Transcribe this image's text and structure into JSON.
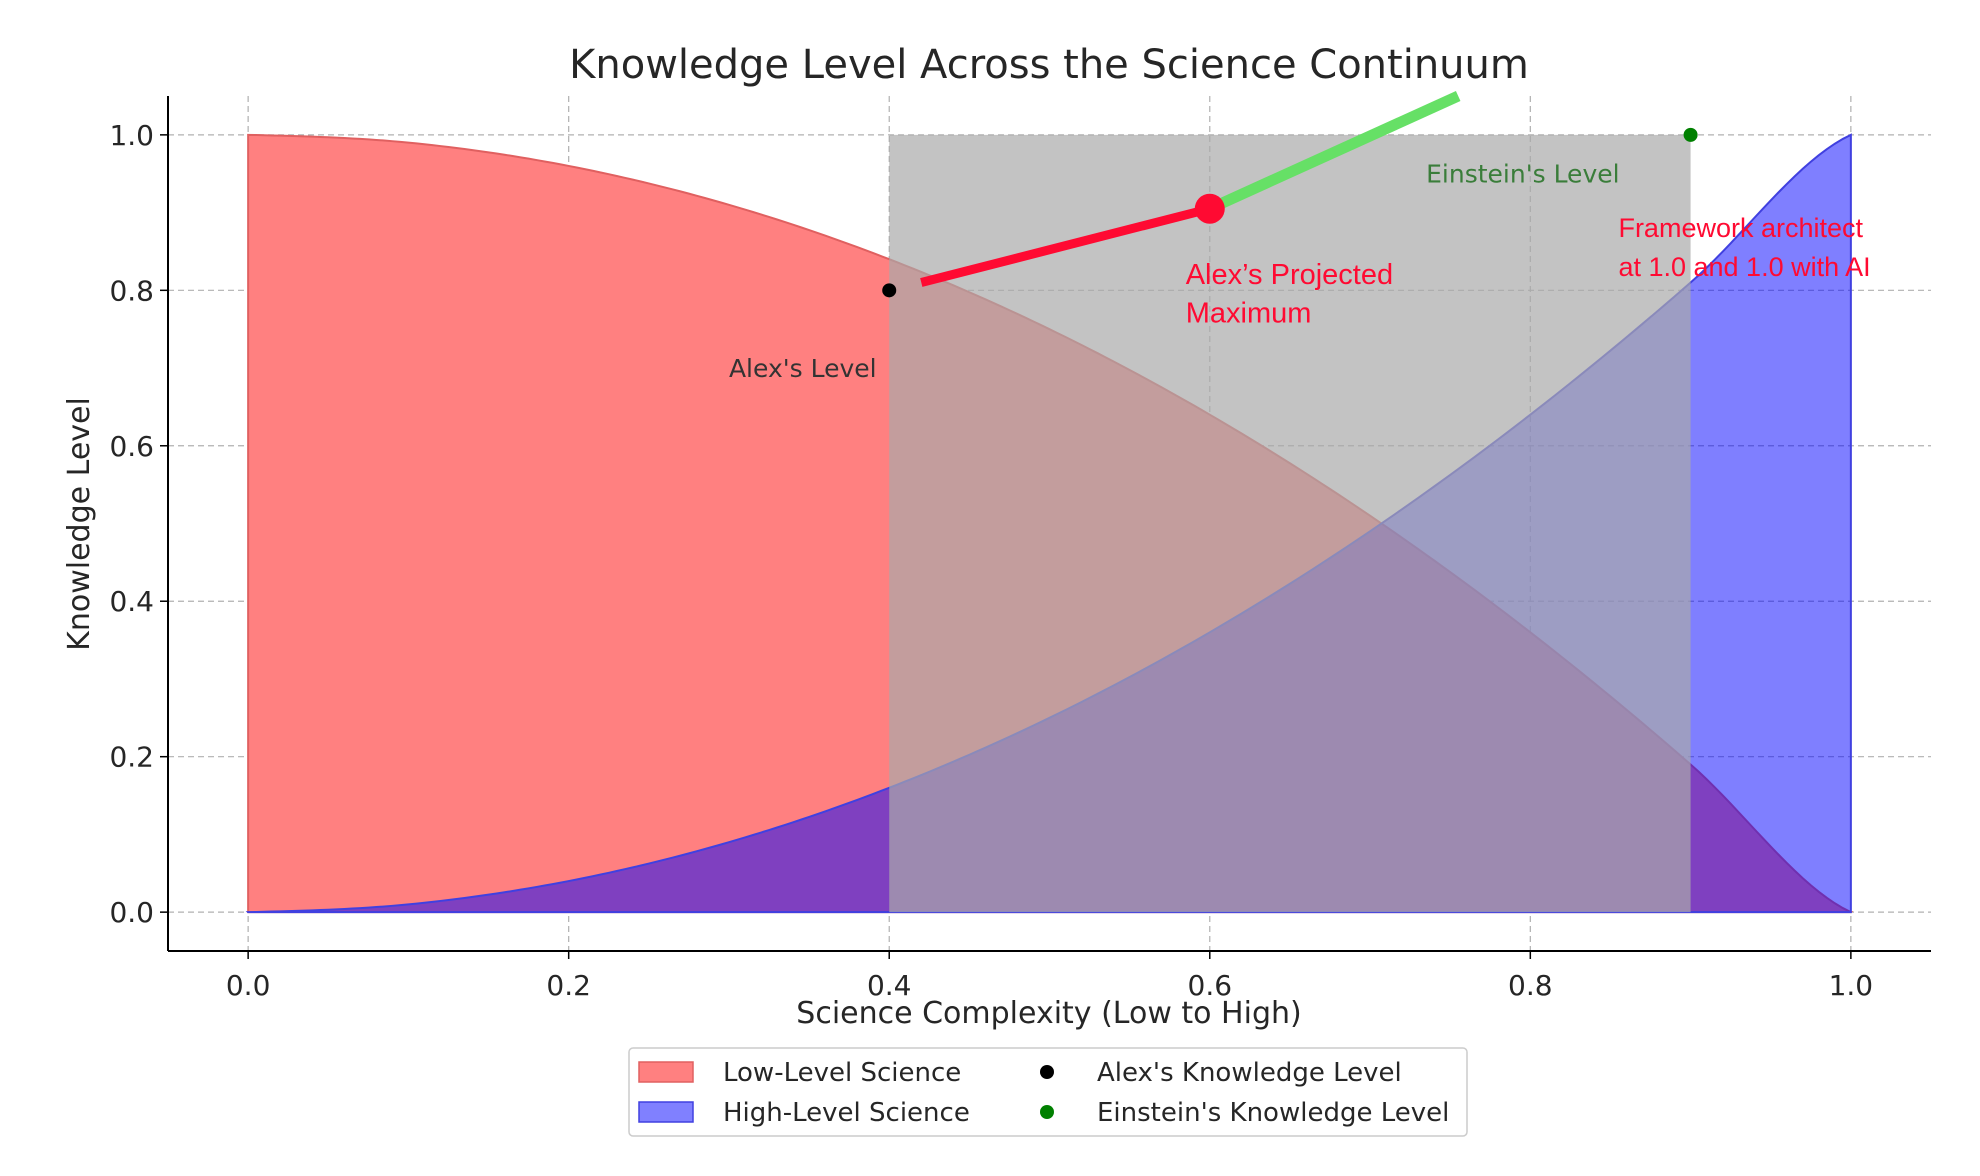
{
  "chart_data": {
    "type": "area",
    "title": "Knowledge Level Across the Science Continuum",
    "xlabel": "Science Complexity (Low to High)",
    "ylabel": "Knowledge Level",
    "xlim": [
      -0.05,
      1.05
    ],
    "ylim": [
      -0.05,
      1.05
    ],
    "x_ticks": [
      0.0,
      0.2,
      0.4,
      0.6,
      0.8,
      1.0
    ],
    "y_ticks": [
      0.0,
      0.2,
      0.4,
      0.6,
      0.8,
      1.0
    ],
    "x_tick_labels": [
      "0.0",
      "0.2",
      "0.4",
      "0.6",
      "0.8",
      "1.0"
    ],
    "y_tick_labels": [
      "0.0",
      "0.2",
      "0.4",
      "0.6",
      "0.8",
      "1.0"
    ],
    "grid": true,
    "legend_position": "bottom-center",
    "series": [
      {
        "name": "Low-Level Science",
        "type": "area",
        "color": "#ff8080",
        "x": [
          0.0,
          0.1,
          0.2,
          0.3,
          0.4,
          0.5,
          0.6,
          0.7,
          0.8,
          0.9,
          1.0
        ],
        "y": [
          1.0,
          0.99,
          0.96,
          0.91,
          0.84,
          0.75,
          0.64,
          0.51,
          0.36,
          0.19,
          0.0
        ]
      },
      {
        "name": "High-Level Science",
        "type": "area",
        "color": "#8080ff",
        "x": [
          0.0,
          0.1,
          0.2,
          0.3,
          0.4,
          0.5,
          0.6,
          0.7,
          0.8,
          0.9,
          1.0
        ],
        "y": [
          0.0,
          0.01,
          0.04,
          0.09,
          0.16,
          0.25,
          0.36,
          0.49,
          0.64,
          0.81,
          1.0
        ]
      },
      {
        "name": "Alex's Knowledge Level",
        "type": "scatter",
        "color": "#000000",
        "x": [
          0.4
        ],
        "y": [
          0.8
        ]
      },
      {
        "name": "Einstein's Knowledge Level",
        "type": "scatter",
        "color": "#008000",
        "x": [
          0.9
        ],
        "y": [
          1.0
        ]
      }
    ],
    "shaded_region": {
      "x": [
        0.4,
        0.9
      ],
      "y": [
        0.0,
        1.0
      ],
      "color": "#a9a9a9"
    },
    "red_segment": {
      "x": [
        0.42,
        0.6
      ],
      "y": [
        0.81,
        0.905
      ],
      "color": "#ff0a32"
    },
    "projected_point": {
      "x": 0.6,
      "y": 0.905,
      "color": "#ff0a32"
    },
    "green_segment": {
      "x": [
        0.6,
        0.755
      ],
      "y": [
        0.905,
        1.05
      ],
      "color": "#66e066"
    },
    "annotations": [
      {
        "id": "alex-level",
        "text": "Alex's Level",
        "x": 0.3,
        "y": 0.7
      },
      {
        "id": "einstein-level",
        "text": "Einstein's Level",
        "x": 0.735,
        "y": 0.95
      },
      {
        "id": "projected-line1",
        "text": "Alex’s Projected",
        "x": 0.585,
        "y": 0.82
      },
      {
        "id": "projected-line2",
        "text": "Maximum",
        "x": 0.585,
        "y": 0.77
      },
      {
        "id": "framework-line1",
        "text": "Framework architect",
        "x": 0.855,
        "y": 0.88
      },
      {
        "id": "framework-line2",
        "text": "at 1.0 and 1.0 with AI",
        "x": 0.855,
        "y": 0.83
      }
    ]
  }
}
